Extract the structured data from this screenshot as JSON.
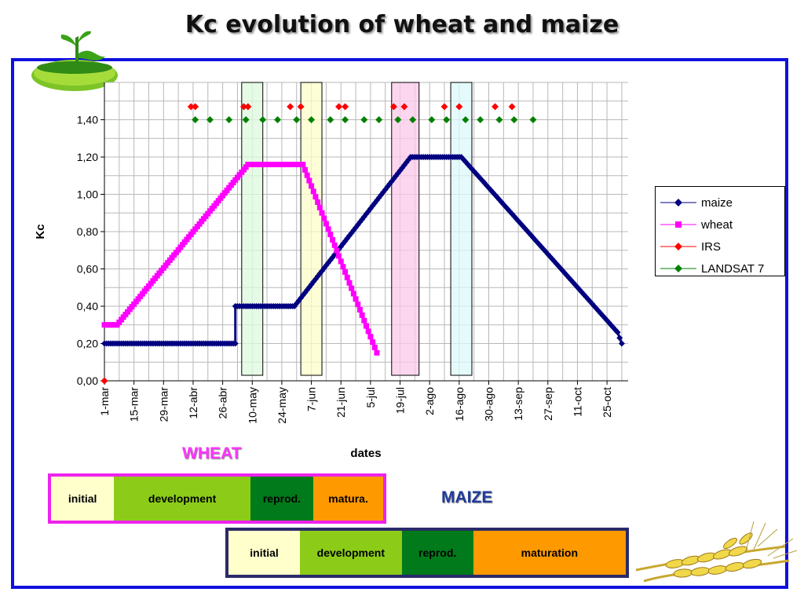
{
  "slide": {
    "title": "Kc evolution of wheat and maize",
    "wheat_label": "WHEAT",
    "maize_label": "MAIZE"
  },
  "colors": {
    "frame": "#1010e0",
    "maize": "#000080",
    "wheat": "#ff00ff",
    "irs": "#ff0000",
    "landsat": "#008000",
    "initial": "#ffffcc",
    "development": "#8ccc18",
    "reproduction": "#007a1a",
    "maturation": "#ff9900"
  },
  "chart_data": {
    "type": "line",
    "title": "",
    "xlabel": "dates",
    "ylabel": "Kc",
    "ylim": [
      0,
      1.6
    ],
    "grid": true,
    "legend_position": "right",
    "y_ticks": [
      {
        "value": 0.0,
        "label": "0,00"
      },
      {
        "value": 0.2,
        "label": "0,20"
      },
      {
        "value": 0.4,
        "label": "0,40"
      },
      {
        "value": 0.6,
        "label": "0,60"
      },
      {
        "value": 0.8,
        "label": "0,80"
      },
      {
        "value": 1.0,
        "label": "1,00"
      },
      {
        "value": 1.2,
        "label": "1,20"
      },
      {
        "value": 1.4,
        "label": "1,40"
      }
    ],
    "x_ticks": [
      "1-mar",
      "15-mar",
      "29-mar",
      "12-abr",
      "26-abr",
      "10-may",
      "24-may",
      "7-jun",
      "21-jun",
      "5-jul",
      "19-jul",
      "2-ago",
      "16-ago",
      "30-ago",
      "13-sep",
      "27-sep",
      "11-oct",
      "25-oct"
    ],
    "series": [
      {
        "name": "maize",
        "color": "#000080",
        "marker": "diamond",
        "points": [
          [
            "1-mar",
            0.2
          ],
          [
            "2-may",
            0.2
          ],
          [
            "2-may",
            0.4
          ],
          [
            "30-may",
            0.4
          ],
          [
            "24-jul",
            1.2
          ],
          [
            "17-ago",
            1.2
          ],
          [
            "30-oct",
            0.26
          ],
          [
            "1-nov",
            0.2
          ]
        ]
      },
      {
        "name": "wheat",
        "color": "#ff00ff",
        "marker": "square",
        "points": [
          [
            "1-mar",
            0.3
          ],
          [
            "7-mar",
            0.3
          ],
          [
            "8-may",
            1.16
          ],
          [
            "3-jun",
            1.16
          ],
          [
            "8-jul",
            0.15
          ]
        ]
      },
      {
        "name": "IRS",
        "color": "#ff0000",
        "marker": "diamond",
        "points": [
          [
            "1-mar",
            0.0
          ],
          [
            "11-abr",
            1.47
          ],
          [
            "13-abr",
            1.47
          ],
          [
            "6-may",
            1.47
          ],
          [
            "8-may",
            1.47
          ],
          [
            "28-may",
            1.47
          ],
          [
            "2-jun",
            1.47
          ],
          [
            "20-jun",
            1.47
          ],
          [
            "23-jun",
            1.47
          ],
          [
            "16-jul",
            1.47
          ],
          [
            "21-jul",
            1.47
          ],
          [
            "9-ago",
            1.47
          ],
          [
            "16-ago",
            1.47
          ],
          [
            "2-sep",
            1.47
          ],
          [
            "10-sep",
            1.47
          ]
        ]
      },
      {
        "name": "LANDSAT 7",
        "color": "#008000",
        "marker": "diamond",
        "points": [
          [
            "13-abr",
            1.4
          ],
          [
            "20-abr",
            1.4
          ],
          [
            "29-abr",
            1.4
          ],
          [
            "7-may",
            1.4
          ],
          [
            "15-may",
            1.4
          ],
          [
            "22-may",
            1.4
          ],
          [
            "31-may",
            1.4
          ],
          [
            "7-jun",
            1.4
          ],
          [
            "16-jun",
            1.4
          ],
          [
            "23-jun",
            1.4
          ],
          [
            "2-jul",
            1.4
          ],
          [
            "9-jul",
            1.4
          ],
          [
            "18-jul",
            1.4
          ],
          [
            "25-jul",
            1.4
          ],
          [
            "3-ago",
            1.4
          ],
          [
            "10-ago",
            1.4
          ],
          [
            "19-ago",
            1.4
          ],
          [
            "26-ago",
            1.4
          ],
          [
            "4-sep",
            1.4
          ],
          [
            "11-sep",
            1.4
          ],
          [
            "20-sep",
            1.4
          ]
        ]
      }
    ],
    "highlight_bands": [
      {
        "from": "5-may",
        "to": "15-may",
        "color": "#dcfadc"
      },
      {
        "from": "2-jun",
        "to": "12-jun",
        "color": "#fdfdc8"
      },
      {
        "from": "15-jul",
        "to": "28-jul",
        "color": "#fbc8e8"
      },
      {
        "from": "12-ago",
        "to": "22-ago",
        "color": "#dcfafa"
      }
    ]
  },
  "wheat_stages": [
    {
      "label": "initial",
      "color": "#ffffcc",
      "width_fraction": 0.19
    },
    {
      "label": "development",
      "color": "#8ccc18",
      "width_fraction": 0.41
    },
    {
      "label": "reprod.",
      "color": "#007a1a",
      "width_fraction": 0.19
    },
    {
      "label": "matura.",
      "color": "#ff9900",
      "width_fraction": 0.21
    }
  ],
  "maize_stages": [
    {
      "label": "initial",
      "color": "#ffffcc",
      "width_fraction": 0.18
    },
    {
      "label": "development",
      "color": "#8ccc18",
      "width_fraction": 0.256
    },
    {
      "label": "reprod.",
      "color": "#007a1a",
      "width_fraction": 0.18
    },
    {
      "label": "maturation",
      "color": "#ff9900",
      "width_fraction": 0.384
    }
  ]
}
